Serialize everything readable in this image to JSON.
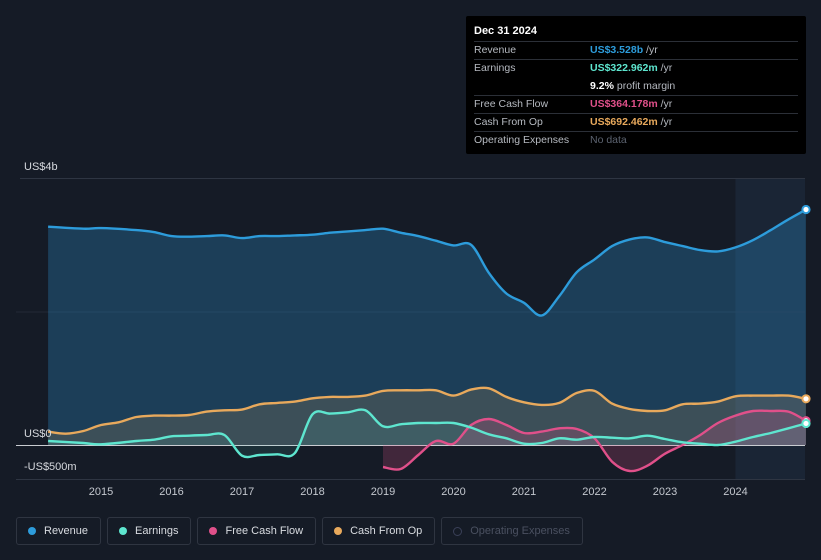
{
  "tooltip": {
    "date": "Dec 31 2024",
    "rows": [
      {
        "label": "Revenue",
        "value": "US$3.528b",
        "unit": "/yr",
        "color": "#2d9cdb"
      },
      {
        "label": "Earnings",
        "value": "US$322.962m",
        "unit": "/yr",
        "color": "#5ee6cf"
      },
      {
        "label": "Free Cash Flow",
        "value": "US$364.178m",
        "unit": "/yr",
        "color": "#e0508a"
      },
      {
        "label": "Cash From Op",
        "value": "US$692.462m",
        "unit": "/yr",
        "color": "#e8a95c"
      },
      {
        "label": "Operating Expenses",
        "value": "No data",
        "unit": "",
        "color": "#5c6370"
      }
    ],
    "margin_value": "9.2%",
    "margin_label": "profit margin"
  },
  "chart_data": {
    "type": "line",
    "title": "",
    "xlabel": "",
    "ylabel": "",
    "ylim": [
      -500,
      4000
    ],
    "y_tick_labels": [
      {
        "value": 4000,
        "label": "US$4b"
      },
      {
        "value": 0,
        "label": "US$0"
      },
      {
        "value": -500,
        "label": "-US$500m"
      }
    ],
    "x_tick_labels": [
      "2015",
      "2016",
      "2017",
      "2018",
      "2019",
      "2020",
      "2021",
      "2022",
      "2023",
      "2024"
    ],
    "forecast_start": 2024.0,
    "series": [
      {
        "name": "Revenue",
        "color": "#2d9cdb",
        "area": true,
        "points": [
          [
            2014.25,
            3270
          ],
          [
            2014.75,
            3240
          ],
          [
            2015.0,
            3250
          ],
          [
            2015.5,
            3220
          ],
          [
            2015.75,
            3190
          ],
          [
            2016.0,
            3130
          ],
          [
            2016.25,
            3120
          ],
          [
            2016.5,
            3130
          ],
          [
            2016.75,
            3140
          ],
          [
            2017.0,
            3100
          ],
          [
            2017.25,
            3130
          ],
          [
            2017.5,
            3130
          ],
          [
            2017.75,
            3140
          ],
          [
            2018.0,
            3150
          ],
          [
            2018.25,
            3180
          ],
          [
            2018.5,
            3200
          ],
          [
            2018.75,
            3220
          ],
          [
            2019.0,
            3240
          ],
          [
            2019.25,
            3180
          ],
          [
            2019.5,
            3130
          ],
          [
            2019.75,
            3060
          ],
          [
            2020.0,
            2990
          ],
          [
            2020.25,
            3000
          ],
          [
            2020.5,
            2580
          ],
          [
            2020.75,
            2270
          ],
          [
            2021.0,
            2130
          ],
          [
            2021.25,
            1940
          ],
          [
            2021.5,
            2230
          ],
          [
            2021.75,
            2590
          ],
          [
            2022.0,
            2780
          ],
          [
            2022.25,
            2980
          ],
          [
            2022.5,
            3080
          ],
          [
            2022.75,
            3110
          ],
          [
            2023.0,
            3040
          ],
          [
            2023.25,
            2980
          ],
          [
            2023.5,
            2920
          ],
          [
            2023.75,
            2900
          ],
          [
            2024.0,
            2960
          ],
          [
            2024.25,
            3070
          ],
          [
            2024.5,
            3220
          ],
          [
            2024.75,
            3380
          ],
          [
            2025.0,
            3528
          ]
        ]
      },
      {
        "name": "Earnings",
        "color": "#5ee6cf",
        "area": true,
        "points": [
          [
            2014.25,
            60
          ],
          [
            2014.75,
            30
          ],
          [
            2015.0,
            10
          ],
          [
            2015.5,
            60
          ],
          [
            2015.75,
            80
          ],
          [
            2016.0,
            130
          ],
          [
            2016.25,
            140
          ],
          [
            2016.5,
            150
          ],
          [
            2016.75,
            150
          ],
          [
            2017.0,
            -160
          ],
          [
            2017.25,
            -150
          ],
          [
            2017.5,
            -140
          ],
          [
            2017.75,
            -120
          ],
          [
            2018.0,
            460
          ],
          [
            2018.25,
            470
          ],
          [
            2018.5,
            490
          ],
          [
            2018.75,
            520
          ],
          [
            2019.0,
            280
          ],
          [
            2019.25,
            310
          ],
          [
            2019.5,
            330
          ],
          [
            2019.75,
            330
          ],
          [
            2020.0,
            330
          ],
          [
            2020.25,
            260
          ],
          [
            2020.5,
            160
          ],
          [
            2020.75,
            100
          ],
          [
            2021.0,
            20
          ],
          [
            2021.25,
            30
          ],
          [
            2021.5,
            100
          ],
          [
            2021.75,
            80
          ],
          [
            2022.0,
            120
          ],
          [
            2022.25,
            110
          ],
          [
            2022.5,
            100
          ],
          [
            2022.75,
            140
          ],
          [
            2023.0,
            90
          ],
          [
            2023.25,
            40
          ],
          [
            2023.5,
            20
          ],
          [
            2023.75,
            0
          ],
          [
            2024.0,
            50
          ],
          [
            2024.25,
            120
          ],
          [
            2024.5,
            180
          ],
          [
            2024.75,
            250
          ],
          [
            2025.0,
            323
          ]
        ]
      },
      {
        "name": "Free Cash Flow",
        "color": "#e0508a",
        "area": true,
        "points": [
          [
            2019.0,
            -330
          ],
          [
            2019.25,
            -360
          ],
          [
            2019.5,
            -150
          ],
          [
            2019.75,
            60
          ],
          [
            2020.0,
            20
          ],
          [
            2020.25,
            300
          ],
          [
            2020.5,
            390
          ],
          [
            2020.75,
            300
          ],
          [
            2021.0,
            180
          ],
          [
            2021.25,
            200
          ],
          [
            2021.5,
            250
          ],
          [
            2021.75,
            240
          ],
          [
            2022.0,
            100
          ],
          [
            2022.25,
            -250
          ],
          [
            2022.5,
            -390
          ],
          [
            2022.75,
            -310
          ],
          [
            2023.0,
            -130
          ],
          [
            2023.25,
            0
          ],
          [
            2023.5,
            150
          ],
          [
            2023.75,
            330
          ],
          [
            2024.0,
            440
          ],
          [
            2024.25,
            510
          ],
          [
            2024.5,
            510
          ],
          [
            2024.75,
            500
          ],
          [
            2025.0,
            364
          ]
        ]
      },
      {
        "name": "Cash From Op",
        "color": "#e8a95c",
        "area": true,
        "points": [
          [
            2014.25,
            200
          ],
          [
            2014.5,
            170
          ],
          [
            2014.75,
            210
          ],
          [
            2015.0,
            300
          ],
          [
            2015.25,
            340
          ],
          [
            2015.5,
            420
          ],
          [
            2015.75,
            440
          ],
          [
            2016.0,
            440
          ],
          [
            2016.25,
            450
          ],
          [
            2016.5,
            500
          ],
          [
            2016.75,
            520
          ],
          [
            2017.0,
            530
          ],
          [
            2017.25,
            610
          ],
          [
            2017.5,
            630
          ],
          [
            2017.75,
            650
          ],
          [
            2018.0,
            700
          ],
          [
            2018.25,
            720
          ],
          [
            2018.5,
            720
          ],
          [
            2018.75,
            740
          ],
          [
            2019.0,
            810
          ],
          [
            2019.25,
            820
          ],
          [
            2019.5,
            820
          ],
          [
            2019.75,
            820
          ],
          [
            2020.0,
            740
          ],
          [
            2020.25,
            830
          ],
          [
            2020.5,
            850
          ],
          [
            2020.75,
            720
          ],
          [
            2021.0,
            640
          ],
          [
            2021.25,
            600
          ],
          [
            2021.5,
            630
          ],
          [
            2021.75,
            780
          ],
          [
            2022.0,
            810
          ],
          [
            2022.25,
            620
          ],
          [
            2022.5,
            540
          ],
          [
            2022.75,
            510
          ],
          [
            2023.0,
            520
          ],
          [
            2023.25,
            610
          ],
          [
            2023.5,
            620
          ],
          [
            2023.75,
            650
          ],
          [
            2024.0,
            730
          ],
          [
            2024.25,
            740
          ],
          [
            2024.5,
            740
          ],
          [
            2024.75,
            740
          ],
          [
            2025.0,
            692
          ]
        ]
      }
    ]
  },
  "legend": [
    {
      "label": "Revenue",
      "color": "#2d9cdb",
      "active": true
    },
    {
      "label": "Earnings",
      "color": "#5ee6cf",
      "active": true
    },
    {
      "label": "Free Cash Flow",
      "color": "#e0508a",
      "active": true
    },
    {
      "label": "Cash From Op",
      "color": "#e8a95c",
      "active": true
    },
    {
      "label": "Operating Expenses",
      "color": "#5c6370",
      "active": false
    }
  ]
}
